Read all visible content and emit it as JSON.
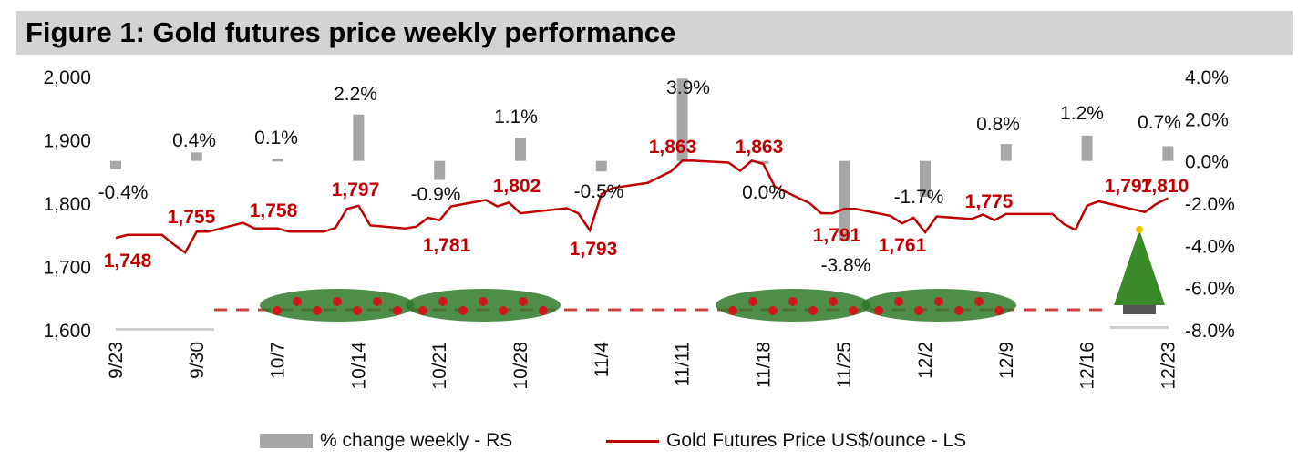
{
  "title": "Figure 1: Gold futures price weekly performance",
  "chart_data": {
    "type": "bar+line",
    "title": "Figure 1: Gold futures price weekly performance",
    "categories": [
      "9/23",
      "9/30",
      "10/7",
      "10/14",
      "10/21",
      "10/28",
      "11/4",
      "11/11",
      "11/18",
      "11/25",
      "12/2",
      "12/9",
      "12/16",
      "12/23"
    ],
    "left_axis": {
      "ticks": [
        "1,600",
        "1,700",
        "1,800",
        "1,900",
        "2,000"
      ],
      "ylim": [
        1600,
        2000
      ]
    },
    "right_axis": {
      "ticks": [
        "-8.0%",
        "-6.0%",
        "-4.0%",
        "-2.0%",
        "0.0%",
        "2.0%",
        "4.0%"
      ],
      "ylim": [
        -8,
        4
      ]
    },
    "series": [
      {
        "name": "% change weekly - RS",
        "type": "bar",
        "axis": "right",
        "color": "#a6a6a6",
        "values": [
          -0.4,
          0.4,
          0.1,
          2.2,
          -0.9,
          1.1,
          -0.5,
          3.9,
          0.0,
          -3.8,
          -1.7,
          0.8,
          1.2,
          0.7
        ],
        "labels": [
          "-0.4%",
          "0.4%",
          "0.1%",
          "2.2%",
          "-0.9%",
          "1.1%",
          "-0.5%",
          "3.9%",
          "0.0%",
          "-3.8%",
          "-1.7%",
          "0.8%",
          "1.2%",
          "0.7%"
        ]
      },
      {
        "name": "Gold Futures Price US$/ounce - LS",
        "type": "line",
        "axis": "left",
        "color": "#c00000",
        "points": [
          [
            "9/23",
            1745
          ],
          [
            "9/24",
            1750
          ],
          [
            "9/27",
            1750
          ],
          [
            "9/28",
            1735
          ],
          [
            "9/29",
            1722
          ],
          [
            "9/30",
            1755
          ],
          [
            "10/1",
            1755
          ],
          [
            "10/4",
            1769
          ],
          [
            "10/5",
            1760
          ],
          [
            "10/7",
            1760
          ],
          [
            "10/8",
            1755
          ],
          [
            "10/11",
            1755
          ],
          [
            "10/12",
            1761
          ],
          [
            "10/13",
            1791
          ],
          [
            "10/14",
            1796
          ],
          [
            "10/15",
            1765
          ],
          [
            "10/18",
            1760
          ],
          [
            "10/19",
            1763
          ],
          [
            "10/20",
            1777
          ],
          [
            "10/21",
            1773
          ],
          [
            "10/22",
            1795
          ],
          [
            "10/25",
            1805
          ],
          [
            "10/26",
            1795
          ],
          [
            "10/27",
            1801
          ],
          [
            "10/28",
            1784
          ],
          [
            "11/1",
            1792
          ],
          [
            "11/2",
            1784
          ],
          [
            "11/3",
            1757
          ],
          [
            "11/4",
            1814
          ],
          [
            "11/5",
            1824
          ],
          [
            "11/8",
            1832
          ],
          [
            "11/10",
            1850
          ],
          [
            "11/11",
            1867
          ],
          [
            "11/12",
            1867
          ],
          [
            "11/15",
            1864
          ],
          [
            "11/16",
            1851
          ],
          [
            "11/17",
            1867
          ],
          [
            "11/18",
            1862
          ],
          [
            "11/19",
            1826
          ],
          [
            "11/22",
            1800
          ],
          [
            "11/23",
            1784
          ],
          [
            "11/24",
            1784
          ],
          [
            "11/25",
            1791
          ],
          [
            "11/26",
            1791
          ],
          [
            "11/29",
            1780
          ],
          [
            "11/30",
            1768
          ],
          [
            "12/1",
            1777
          ],
          [
            "12/2",
            1754
          ],
          [
            "12/3",
            1779
          ],
          [
            "12/6",
            1775
          ],
          [
            "12/7",
            1782
          ],
          [
            "12/8",
            1773
          ],
          [
            "12/9",
            1783
          ],
          [
            "12/13",
            1783
          ],
          [
            "12/14",
            1767
          ],
          [
            "12/15",
            1758
          ],
          [
            "12/16",
            1796
          ],
          [
            "12/17",
            1803
          ],
          [
            "12/21",
            1786
          ],
          [
            "12/22",
            1799
          ],
          [
            "12/23",
            1808
          ]
        ],
        "labels": [
          "1,748",
          "1,755",
          "1,758",
          "1,797",
          "1,781",
          "1,802",
          "1,793",
          "1,863",
          "1,863",
          "1,791",
          "1,761",
          "1,775",
          "1,797",
          "1,810"
        ]
      }
    ],
    "legend": "bottom",
    "grid": false
  }
}
